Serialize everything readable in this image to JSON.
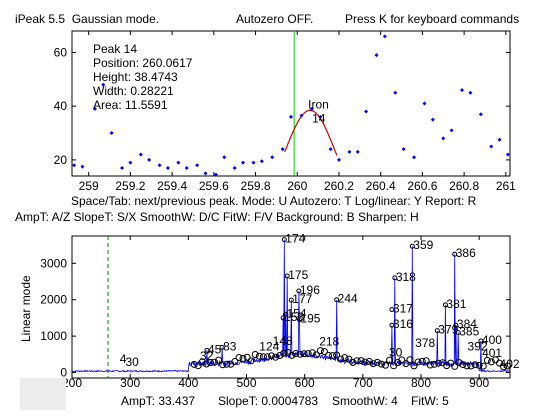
{
  "header": {
    "app": "iPeak 5.5",
    "mode": "Gaussian mode.",
    "autozero": "Autozero OFF.",
    "hint": "Press K for keyboard commands"
  },
  "peak_info": {
    "peak": "Peak 14",
    "position": "Position: 260.0617",
    "height": "Height: 38.4743",
    "width": "Width: 0.28221",
    "area": "Area: 11.5591"
  },
  "peak_label": {
    "name": "Iron",
    "number": "14"
  },
  "status": {
    "line1": "Space/Tab: next/previous peak.  Mode: U  Autozero: T   Log/linear: Y  Report: R",
    "line2": "AmpT: A/Z   SlopeT: S/X   SmoothW: D/C  FitW: F/V   Background: B   Sharpen: H"
  },
  "footer": {
    "ampt": "AmpT: 33.437",
    "slopet": "SlopeT: 0.0004783",
    "smoothw": "SmoothW: 4",
    "fitw": "FitW: 5"
  },
  "colors": {
    "data": "#0000ff",
    "fit": "#cc0000",
    "marker": "#00cc00",
    "window": "#008800"
  },
  "chart_data": [
    {
      "type": "scatter",
      "title": "",
      "xlabel": "",
      "ylabel": "",
      "xlim": [
        258.92,
        261.02
      ],
      "ylim": [
        14,
        68
      ],
      "x_ticks": [
        "259",
        "259.2",
        "259.4",
        "259.6",
        "259.8",
        "260",
        "260.2",
        "260.4",
        "260.6",
        "260.8",
        "261"
      ],
      "y_ticks": [
        "20",
        "40",
        "60"
      ],
      "points": [
        [
          258.93,
          18
        ],
        [
          258.97,
          17.5
        ],
        [
          259.03,
          39
        ],
        [
          259.07,
          48
        ],
        [
          259.11,
          30
        ],
        [
          259.16,
          17
        ],
        [
          259.2,
          19
        ],
        [
          259.25,
          22
        ],
        [
          259.29,
          20
        ],
        [
          259.34,
          18
        ],
        [
          259.38,
          17
        ],
        [
          259.43,
          19
        ],
        [
          259.47,
          17
        ],
        [
          259.52,
          18
        ],
        [
          259.56,
          15
        ],
        [
          259.61,
          14.5
        ],
        [
          259.65,
          21
        ],
        [
          259.7,
          17
        ],
        [
          259.74,
          19
        ],
        [
          259.79,
          19
        ],
        [
          259.83,
          19.5
        ],
        [
          259.88,
          21
        ],
        [
          259.93,
          24
        ],
        [
          259.97,
          36
        ],
        [
          260.02,
          36.5
        ],
        [
          260.07,
          39
        ],
        [
          260.11,
          36
        ],
        [
          260.16,
          24
        ],
        [
          260.2,
          20
        ],
        [
          260.25,
          23
        ],
        [
          260.29,
          23
        ],
        [
          260.33,
          38
        ],
        [
          260.38,
          59
        ],
        [
          260.42,
          66
        ],
        [
          260.47,
          45
        ],
        [
          260.51,
          24
        ],
        [
          260.56,
          21
        ],
        [
          260.61,
          41
        ],
        [
          260.65,
          35
        ],
        [
          260.7,
          28
        ],
        [
          260.74,
          31
        ],
        [
          260.79,
          46
        ],
        [
          260.83,
          45
        ],
        [
          260.88,
          37
        ],
        [
          260.93,
          25
        ],
        [
          260.97,
          27.5
        ],
        [
          261.01,
          22
        ]
      ],
      "fit": {
        "center": 260.0617,
        "height": 38.4743,
        "width": 0.28221,
        "from": 259.94,
        "to": 260.19
      },
      "marker_x": 259.985
    },
    {
      "type": "line",
      "title": "",
      "xlabel": "",
      "ylabel": "Linear mode",
      "xlim": [
        200,
        953
      ],
      "ylim": [
        -150,
        3750
      ],
      "x_ticks": [
        "200",
        "300",
        "400",
        "500",
        "600",
        "700",
        "800",
        "900"
      ],
      "y_ticks": [
        "0",
        "1000",
        "2000",
        "3000"
      ],
      "window_x": 262,
      "peaks": [
        {
          "x": 565,
          "y": 3650,
          "label": "174"
        },
        {
          "x": 785,
          "y": 3470,
          "label": "359"
        },
        {
          "x": 858,
          "y": 3250,
          "label": "386"
        },
        {
          "x": 570,
          "y": 2650,
          "label": "175"
        },
        {
          "x": 755,
          "y": 2600,
          "label": "318"
        },
        {
          "x": 590,
          "y": 2240,
          "label": "196"
        },
        {
          "x": 577,
          "y": 1990,
          "label": "177"
        },
        {
          "x": 655,
          "y": 2000,
          "label": "244"
        },
        {
          "x": 842,
          "y": 1860,
          "label": "381"
        },
        {
          "x": 750,
          "y": 1730,
          "label": "317"
        },
        {
          "x": 567,
          "y": 1600,
          "label": "154"
        },
        {
          "x": 563,
          "y": 1500,
          "label": "153"
        },
        {
          "x": 591,
          "y": 1450,
          "label": "195"
        },
        {
          "x": 750,
          "y": 1300,
          "label": "316"
        },
        {
          "x": 860,
          "y": 1300,
          "label": "384"
        },
        {
          "x": 828,
          "y": 1150,
          "label": "379"
        },
        {
          "x": 864,
          "y": 1100,
          "label": "385"
        },
        {
          "x": 458,
          "y": 690,
          "label": "83"
        },
        {
          "x": 432,
          "y": 610,
          "label": "45"
        },
        {
          "x": 903,
          "y": 870,
          "label": "400"
        }
      ],
      "small_labels": [
        {
          "x": 282,
          "y": 260,
          "label": "4"
        },
        {
          "x": 292,
          "y": 180,
          "label": "30"
        },
        {
          "x": 420,
          "y": 350,
          "label": "32"
        },
        {
          "x": 522,
          "y": 610,
          "label": "124"
        },
        {
          "x": 545,
          "y": 750,
          "label": "148"
        },
        {
          "x": 625,
          "y": 740,
          "label": "218"
        },
        {
          "x": 745,
          "y": 440,
          "label": "30"
        },
        {
          "x": 790,
          "y": 700,
          "label": "378"
        },
        {
          "x": 880,
          "y": 600,
          "label": "392"
        },
        {
          "x": 905,
          "y": 420,
          "label": "401"
        },
        {
          "x": 935,
          "y": 120,
          "label": "402"
        }
      ]
    }
  ]
}
